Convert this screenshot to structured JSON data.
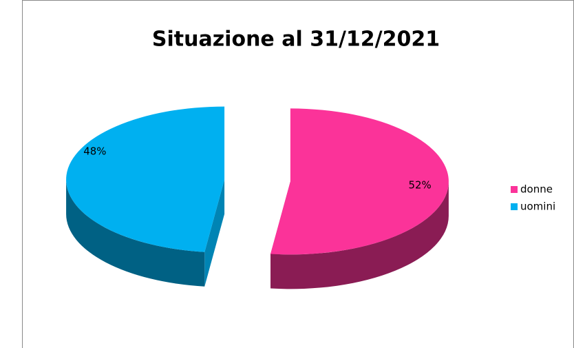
{
  "chart_data": {
    "type": "pie",
    "title": "Situazione al 31/12/2021",
    "categories": [
      "donne",
      "uomini"
    ],
    "values": [
      52,
      48
    ],
    "value_labels": [
      "52%",
      "48%"
    ],
    "colors": [
      "#fb3399",
      "#00b0f0"
    ],
    "legend": "right"
  }
}
